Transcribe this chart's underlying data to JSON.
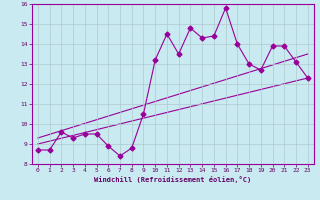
{
  "background_color": "#c8eaf0",
  "line_color": "#990099",
  "grid_color": "#b0c8d0",
  "xlabel": "Windchill (Refroidissement éolien,°C)",
  "xlabel_color": "#660066",
  "tick_color": "#660066",
  "xlim": [
    -0.5,
    23.5
  ],
  "ylim": [
    8,
    16
  ],
  "xticks": [
    0,
    1,
    2,
    3,
    4,
    5,
    6,
    7,
    8,
    9,
    10,
    11,
    12,
    13,
    14,
    15,
    16,
    17,
    18,
    19,
    20,
    21,
    22,
    23
  ],
  "yticks": [
    8,
    9,
    10,
    11,
    12,
    13,
    14,
    15,
    16
  ],
  "curve1_x": [
    0,
    1,
    2,
    3,
    4,
    5,
    6,
    7,
    8,
    9,
    10,
    11,
    12,
    13,
    14,
    15,
    16,
    17,
    18,
    19,
    20,
    21,
    22,
    23
  ],
  "curve1_y": [
    8.7,
    8.7,
    9.6,
    9.3,
    9.5,
    9.5,
    8.9,
    8.4,
    8.8,
    10.5,
    13.2,
    14.5,
    13.5,
    14.8,
    14.3,
    14.4,
    15.8,
    14.0,
    13.0,
    12.7,
    13.9,
    13.9,
    13.1,
    12.3
  ],
  "curve2_x": [
    0,
    23
  ],
  "curve2_y": [
    9.0,
    12.3
  ],
  "curve3_x": [
    0,
    23
  ],
  "curve3_y": [
    9.3,
    13.5
  ],
  "marker": "D",
  "markersize": 2.5,
  "linewidth": 0.8
}
